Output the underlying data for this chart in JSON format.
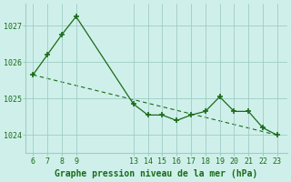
{
  "x": [
    6,
    7,
    8,
    9,
    13,
    14,
    15,
    16,
    17,
    18,
    19,
    20,
    21,
    22,
    23
  ],
  "y": [
    1025.65,
    1026.2,
    1026.75,
    1027.25,
    1024.85,
    1024.55,
    1024.55,
    1024.4,
    1024.55,
    1024.65,
    1025.05,
    1024.65,
    1024.65,
    1024.2,
    1024.0
  ],
  "trend_x": [
    6,
    23
  ],
  "trend_y": [
    1025.65,
    1024.0
  ],
  "xticks": [
    6,
    7,
    8,
    9,
    13,
    14,
    15,
    16,
    17,
    18,
    19,
    20,
    21,
    22,
    23
  ],
  "yticks": [
    1024,
    1025,
    1026,
    1027
  ],
  "ylim": [
    1023.5,
    1027.6
  ],
  "xlim": [
    5.5,
    23.7
  ],
  "line_color": "#1a6b1a",
  "marker_color": "#1a6b1a",
  "bg_color": "#cff0ea",
  "grid_color": "#a0ccc6",
  "xlabel": "Graphe pression niveau de la mer (hPa)"
}
